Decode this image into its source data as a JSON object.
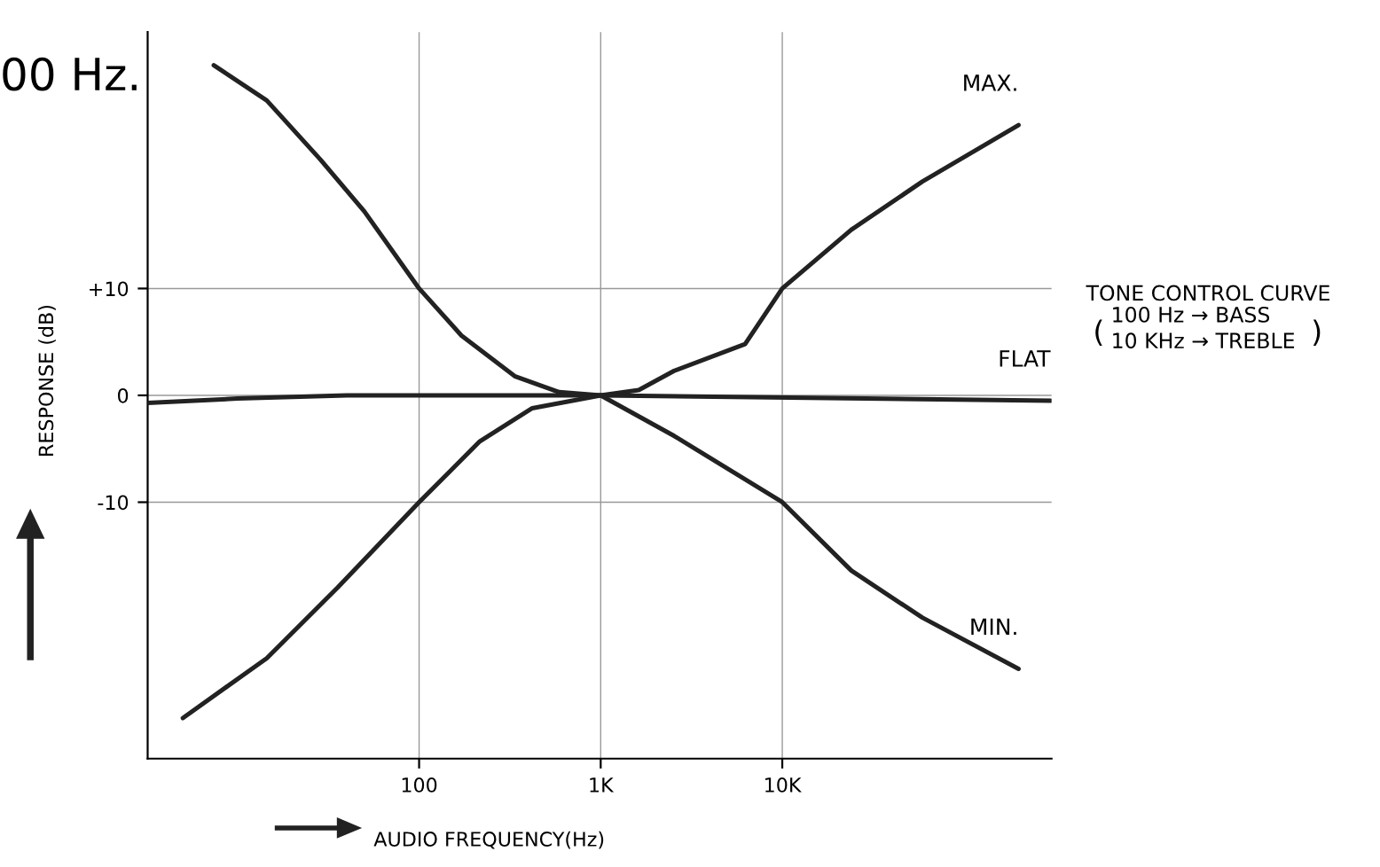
{
  "chart_data": {
    "type": "line",
    "xlabel": "AUDIO FREQUENCY(Hz)",
    "ylabel": "RESPONSE (dB)",
    "log": "x",
    "xlim": [
      3.2,
      304000
    ],
    "ylim": [
      -34,
      34
    ],
    "xticks": [
      100,
      {
        "value": 1000,
        "label": "1K"
      },
      {
        "value": 10000,
        "label": "10K"
      }
    ],
    "yticks": [
      {
        "value": 10,
        "label": "+10"
      },
      0,
      {
        "value": -10,
        "label": "-10"
      }
    ],
    "grid": true,
    "legend": false,
    "marker": "none",
    "line_style": "solid",
    "series": [
      {
        "name": "MAX.",
        "color": "#222222",
        "x": [
          7.4,
          14.5,
          28.5,
          50,
          100,
          171,
          336,
          590,
          1000,
          1620,
          2540,
          6240,
          10000,
          24000,
          59000,
          200000
        ],
        "values": [
          30.9,
          27.6,
          22.1,
          17.2,
          10,
          5.6,
          1.8,
          0.3,
          0,
          0.5,
          2.3,
          4.8,
          10,
          15.5,
          20,
          25.3
        ]
      },
      {
        "name": "FLAT",
        "color": "#222222",
        "x": [
          3.2,
          10,
          40,
          1000,
          300000
        ],
        "values": [
          -0.7,
          -0.3,
          0,
          0,
          -0.5
        ]
      },
      {
        "name": "MIN.",
        "color": "#222222",
        "x": [
          5.0,
          14.5,
          35.5,
          100,
          216,
          420,
          1000,
          2540,
          10000,
          24000,
          59000,
          200000
        ],
        "values": [
          -30.2,
          -24.6,
          -18,
          -10,
          -4.3,
          -1.2,
          0,
          -3.8,
          -10,
          -16.4,
          -20.8,
          -25.6
        ]
      }
    ],
    "annotations": [
      "00 Hz.",
      "TONE CONTROL CURVE",
      "(",
      "100 Hz → BASS",
      "10 KHz → TREBLE",
      ")"
    ]
  }
}
